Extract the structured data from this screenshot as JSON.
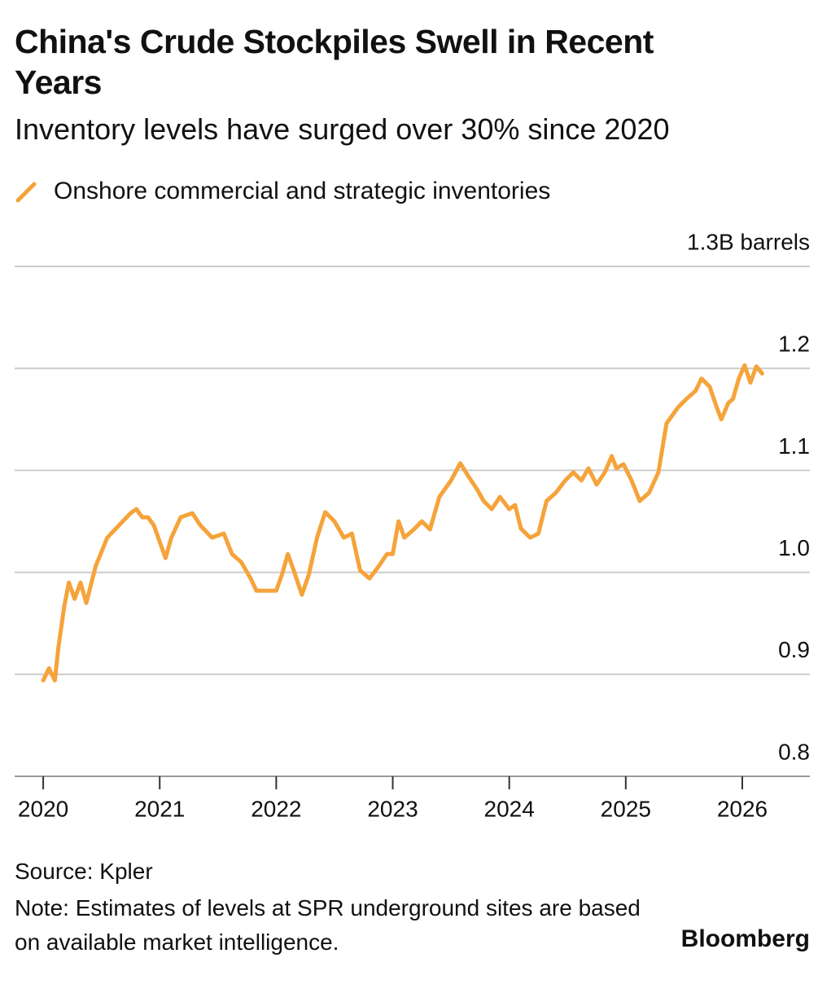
{
  "chart_data": {
    "type": "line",
    "title": "China's Crude Stockpiles Swell in Recent Years",
    "subtitle": "Inventory levels have surged over 30% since 2020",
    "source": "Source: Kpler",
    "note": "Note: Estimates of levels at SPR underground sites are based on available market intelligence.",
    "brand": "Bloomberg",
    "x": [
      2020.0,
      2020.05,
      2020.1,
      2020.13,
      2020.18,
      2020.22,
      2020.27,
      2020.32,
      2020.37,
      2020.45,
      2020.55,
      2020.65,
      2020.75,
      2020.8,
      2020.85,
      2020.9,
      2020.95,
      2021.0,
      2021.05,
      2021.1,
      2021.18,
      2021.28,
      2021.35,
      2021.45,
      2021.55,
      2021.62,
      2021.7,
      2021.78,
      2021.83,
      2021.95,
      2022.0,
      2022.05,
      2022.1,
      2022.15,
      2022.22,
      2022.28,
      2022.35,
      2022.42,
      2022.5,
      2022.58,
      2022.65,
      2022.72,
      2022.8,
      2022.88,
      2022.95,
      2023.0,
      2023.05,
      2023.1,
      2023.18,
      2023.25,
      2023.32,
      2023.4,
      2023.5,
      2023.58,
      2023.65,
      2023.72,
      2023.78,
      2023.85,
      2023.92,
      2024.0,
      2024.05,
      2024.1,
      2024.18,
      2024.25,
      2024.32,
      2024.4,
      2024.48,
      2024.55,
      2024.62,
      2024.68,
      2024.75,
      2024.82,
      2024.88,
      2024.92,
      2024.98,
      2025.05,
      2025.12,
      2025.2,
      2025.28,
      2025.35,
      2025.45,
      2025.52,
      2025.6,
      2025.65,
      2025.72,
      2025.78,
      2025.82,
      2025.88,
      2025.92,
      2025.97,
      2026.02,
      2026.07,
      2026.12,
      2026.17
    ],
    "series": [
      {
        "name": "Onshore commercial and strategic inventories",
        "color": "#f5a33a",
        "values": [
          0.894,
          0.906,
          0.894,
          0.926,
          0.966,
          0.99,
          0.974,
          0.99,
          0.97,
          1.006,
          1.034,
          1.046,
          1.058,
          1.062,
          1.054,
          1.054,
          1.046,
          1.03,
          1.014,
          1.034,
          1.054,
          1.058,
          1.046,
          1.034,
          1.038,
          1.018,
          1.01,
          0.994,
          0.982,
          0.982,
          0.982,
          0.998,
          1.018,
          1.002,
          0.978,
          0.998,
          1.034,
          1.059,
          1.05,
          1.034,
          1.038,
          1.002,
          0.994,
          1.006,
          1.018,
          1.018,
          1.05,
          1.034,
          1.042,
          1.05,
          1.042,
          1.074,
          1.09,
          1.107,
          1.094,
          1.082,
          1.07,
          1.062,
          1.074,
          1.062,
          1.066,
          1.043,
          1.034,
          1.038,
          1.07,
          1.078,
          1.09,
          1.098,
          1.09,
          1.102,
          1.086,
          1.098,
          1.114,
          1.102,
          1.106,
          1.09,
          1.07,
          1.078,
          1.098,
          1.146,
          1.162,
          1.17,
          1.178,
          1.19,
          1.182,
          1.162,
          1.15,
          1.166,
          1.17,
          1.19,
          1.203,
          1.186,
          1.202,
          1.195
        ]
      }
    ],
    "xlim": [
      2019.755,
      2026.58
    ],
    "xticks": [
      2020,
      2021,
      2022,
      2023,
      2024,
      2025,
      2026
    ],
    "ylim": [
      0.8,
      1.3
    ],
    "yticks": [
      0.8,
      0.9,
      {
        "value": 1,
        "label": "1.0"
      },
      1.1,
      1.2,
      {
        "value": 1.3,
        "label": "1.3B barrels"
      }
    ],
    "grid": true
  }
}
